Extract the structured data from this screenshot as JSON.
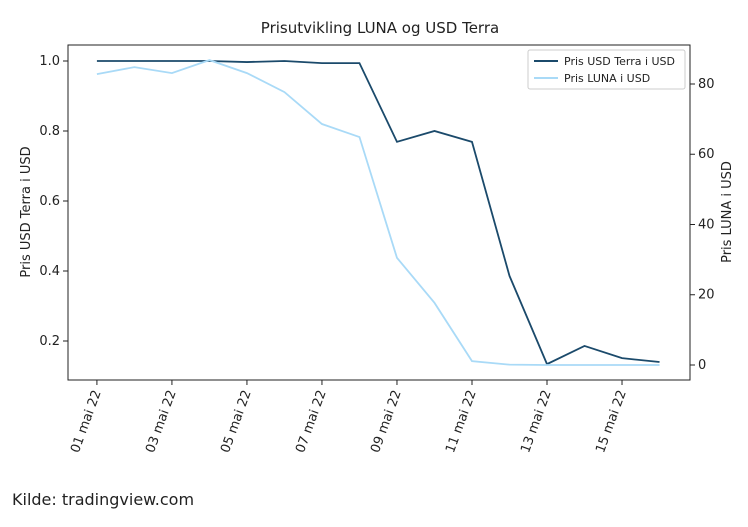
{
  "chart_data": {
    "type": "line",
    "title": "Prisutvikling LUNA og USD Terra",
    "y_label": "Pris USD Terra i USD",
    "y2_label": "Pris LUNA i USD",
    "source": "Kilde: tradingview.com",
    "x": [
      "2022-05-01",
      "2022-05-02",
      "2022-05-03",
      "2022-05-04",
      "2022-05-05",
      "2022-05-06",
      "2022-05-07",
      "2022-05-08",
      "2022-05-09",
      "2022-05-10",
      "2022-05-11",
      "2022-05-12",
      "2022-05-13",
      "2022-05-14",
      "2022-05-15",
      "2022-05-16"
    ],
    "xlim": [
      "2022-04-30T05:30",
      "2022-05-16T19:30"
    ],
    "xticks": [
      {
        "value": "2022-05-01",
        "label": "01 mai 22"
      },
      {
        "value": "2022-05-03",
        "label": "03 mai 22"
      },
      {
        "value": "2022-05-05",
        "label": "05 mai 22"
      },
      {
        "value": "2022-05-07",
        "label": "07 mai 22"
      },
      {
        "value": "2022-05-09",
        "label": "09 mai 22"
      },
      {
        "value": "2022-05-11",
        "label": "11 mai 22"
      },
      {
        "value": "2022-05-13",
        "label": "13 mai 22"
      },
      {
        "value": "2022-05-15",
        "label": "15 mai 22"
      }
    ],
    "ylim": [
      0.0886,
      1.0457
    ],
    "yticks": [
      {
        "value": 0.2,
        "label": "0.2"
      },
      {
        "value": 0.4,
        "label": "0.4"
      },
      {
        "value": 0.6,
        "label": "0.6"
      },
      {
        "value": 0.8,
        "label": "0.8"
      },
      {
        "value": 1.0,
        "label": "1.0"
      }
    ],
    "y2lim": [
      -4.27,
      91.1
    ],
    "y2ticks": [
      0,
      20,
      40,
      60,
      80
    ],
    "legend": "upper right",
    "series": [
      {
        "name": "Pris USD Terra i USD",
        "color": "#1b4a6b",
        "values": [
          1.0,
          1.0,
          1.0,
          1.0,
          0.997,
          1.0,
          0.994,
          0.994,
          0.769,
          0.8,
          0.769,
          0.386,
          0.134,
          0.186,
          0.151,
          0.14
        ]
      },
      {
        "name": "Pris LUNA i USD",
        "color": "#a9daf7",
        "axis": "y2",
        "values": [
          82.8,
          84.8,
          83.1,
          86.8,
          83.1,
          77.7,
          68.6,
          64.9,
          30.5,
          17.7,
          1.1,
          0.1,
          0.01,
          0,
          0,
          0
        ]
      }
    ]
  }
}
